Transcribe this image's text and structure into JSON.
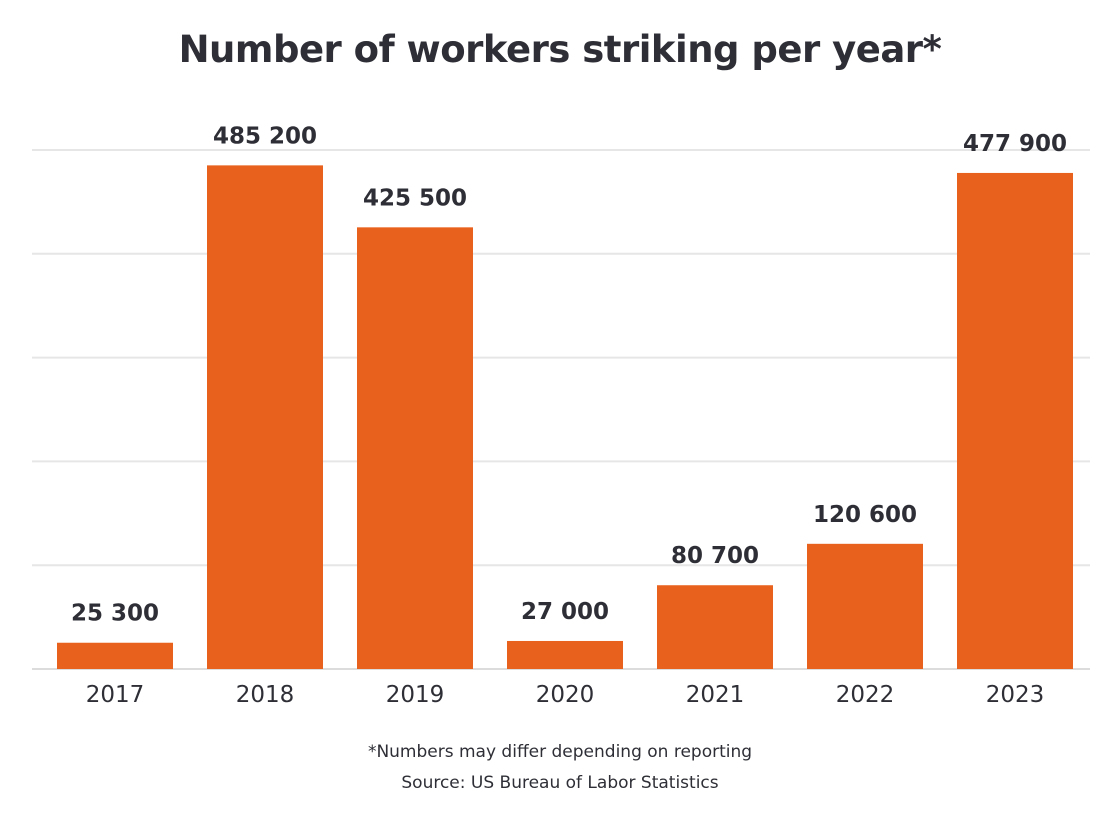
{
  "chart_data": {
    "type": "bar",
    "title": "Number of workers striking per year*",
    "categories": [
      "2017",
      "2018",
      "2019",
      "2020",
      "2021",
      "2022",
      "2023"
    ],
    "values": [
      25300,
      485200,
      425500,
      27000,
      80700,
      120600,
      477900
    ],
    "value_labels": [
      "25 300",
      "485 200",
      "425 500",
      "27 000",
      "80 700",
      "120 600",
      "477 900"
    ],
    "ylim": [
      0,
      500000
    ],
    "grid": true,
    "bar_color": "#e8621e",
    "grid_color": "#e6e6e6",
    "text_color": "#2e2f36"
  },
  "footnote": "*Numbers may differ depending on reporting",
  "source": "Source: US Bureau of Labor Statistics"
}
